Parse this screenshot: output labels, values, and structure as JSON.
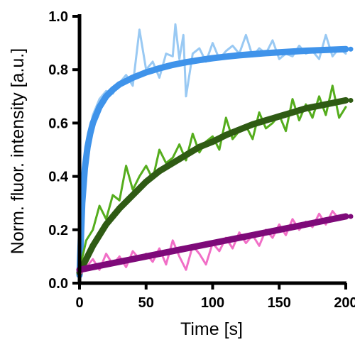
{
  "chart_data": {
    "type": "line",
    "title": "",
    "xlabel": "Time [s]",
    "ylabel": "Norm. fluor. intensity [a.u.]",
    "xlim": [
      0,
      200
    ],
    "ylim": [
      0,
      1.0
    ],
    "x_ticks": [
      "0",
      "50",
      "100",
      "150",
      "200"
    ],
    "y_ticks": [
      "0.0",
      "0.2",
      "0.4",
      "0.6",
      "0.8",
      "1.0"
    ],
    "grid": false,
    "legend": "none",
    "series": [
      {
        "kind": "raw",
        "color": "#99c9f3",
        "x": [
          0,
          2,
          4,
          6,
          8,
          10,
          15,
          20,
          25,
          30,
          35,
          40,
          45,
          50,
          55,
          60,
          65,
          70,
          72,
          75,
          78,
          80,
          85,
          90,
          95,
          100,
          105,
          110,
          115,
          120,
          125,
          130,
          135,
          140,
          145,
          150,
          155,
          160,
          165,
          170,
          175,
          180,
          185,
          190,
          195,
          200
        ],
        "values": [
          0.02,
          0.28,
          0.42,
          0.52,
          0.58,
          0.63,
          0.69,
          0.72,
          0.71,
          0.75,
          0.78,
          0.74,
          0.95,
          0.8,
          0.83,
          0.77,
          0.86,
          0.85,
          0.97,
          0.84,
          0.93,
          0.7,
          0.86,
          0.88,
          0.83,
          0.9,
          0.84,
          0.87,
          0.89,
          0.86,
          0.93,
          0.85,
          0.88,
          0.86,
          0.91,
          0.84,
          0.86,
          0.85,
          0.89,
          0.86,
          0.87,
          0.84,
          0.93,
          0.85,
          0.88,
          0.86
        ]
      },
      {
        "kind": "fit",
        "color": "#3f93ea",
        "x": [
          0,
          2,
          4,
          6,
          8,
          10,
          15,
          20,
          25,
          30,
          40,
          50,
          60,
          70,
          80,
          90,
          100,
          110,
          120,
          130,
          140,
          150,
          160,
          170,
          180,
          190,
          200
        ],
        "values": [
          0.03,
          0.3,
          0.43,
          0.51,
          0.56,
          0.6,
          0.66,
          0.7,
          0.725,
          0.745,
          0.77,
          0.79,
          0.805,
          0.818,
          0.828,
          0.836,
          0.843,
          0.849,
          0.854,
          0.858,
          0.862,
          0.865,
          0.868,
          0.871,
          0.873,
          0.875,
          0.877
        ]
      },
      {
        "kind": "raw",
        "color": "#55ad1d",
        "x": [
          0,
          5,
          10,
          15,
          20,
          25,
          30,
          35,
          40,
          45,
          50,
          55,
          60,
          65,
          70,
          75,
          80,
          85,
          90,
          95,
          100,
          105,
          110,
          115,
          120,
          125,
          130,
          135,
          140,
          145,
          150,
          155,
          160,
          165,
          170,
          175,
          180,
          185,
          190,
          195,
          200
        ],
        "values": [
          0.05,
          0.16,
          0.2,
          0.29,
          0.24,
          0.33,
          0.31,
          0.44,
          0.35,
          0.4,
          0.44,
          0.39,
          0.5,
          0.45,
          0.47,
          0.52,
          0.46,
          0.56,
          0.49,
          0.53,
          0.55,
          0.5,
          0.62,
          0.54,
          0.57,
          0.59,
          0.54,
          0.64,
          0.58,
          0.6,
          0.63,
          0.57,
          0.69,
          0.61,
          0.67,
          0.62,
          0.7,
          0.63,
          0.74,
          0.62,
          0.66
        ]
      },
      {
        "kind": "fit",
        "color": "#2f5b14",
        "x": [
          0,
          10,
          20,
          30,
          40,
          50,
          60,
          70,
          80,
          90,
          100,
          110,
          120,
          130,
          140,
          150,
          160,
          170,
          180,
          190,
          200
        ],
        "values": [
          0.04,
          0.14,
          0.22,
          0.28,
          0.33,
          0.38,
          0.42,
          0.45,
          0.48,
          0.51,
          0.53,
          0.555,
          0.575,
          0.595,
          0.61,
          0.625,
          0.64,
          0.655,
          0.665,
          0.675,
          0.685
        ]
      },
      {
        "kind": "raw",
        "color": "#f16fc7",
        "x": [
          0,
          5,
          10,
          15,
          20,
          25,
          30,
          35,
          40,
          45,
          50,
          55,
          60,
          65,
          70,
          75,
          80,
          85,
          90,
          95,
          100,
          105,
          110,
          115,
          120,
          125,
          130,
          135,
          140,
          145,
          150,
          155,
          160,
          165,
          170,
          175,
          180,
          185,
          190,
          195,
          200
        ],
        "values": [
          0.03,
          0.06,
          0.09,
          0.05,
          0.11,
          0.07,
          0.1,
          0.06,
          0.12,
          0.09,
          0.11,
          0.08,
          0.13,
          0.07,
          0.16,
          0.1,
          0.05,
          0.14,
          0.11,
          0.07,
          0.15,
          0.12,
          0.17,
          0.13,
          0.19,
          0.15,
          0.18,
          0.14,
          0.2,
          0.17,
          0.22,
          0.18,
          0.24,
          0.2,
          0.23,
          0.21,
          0.26,
          0.22,
          0.27,
          0.24,
          0.25
        ]
      },
      {
        "kind": "fit",
        "color": "#7e0a79",
        "x": [
          0,
          200
        ],
        "values": [
          0.05,
          0.25
        ]
      }
    ]
  }
}
